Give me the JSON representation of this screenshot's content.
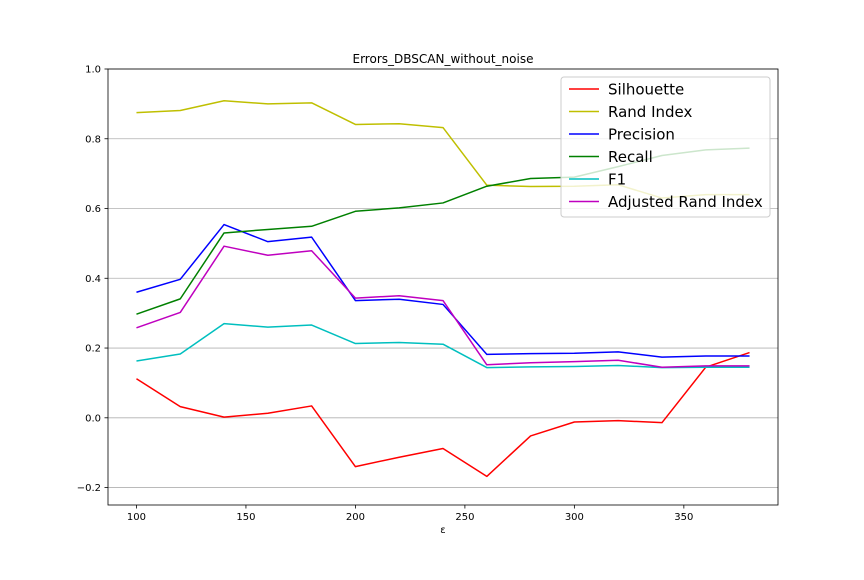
{
  "chart_data": {
    "type": "line",
    "title": "Errors_DBSCAN_without_noise",
    "xlabel": "ε",
    "ylabel": "",
    "xlim": [
      87,
      393
    ],
    "ylim": [
      -0.25,
      1.0
    ],
    "xticks": [
      100,
      150,
      200,
      250,
      300,
      350
    ],
    "yticks": [
      -0.2,
      0.0,
      0.2,
      0.4,
      0.6,
      0.8,
      1.0
    ],
    "grid": "horizontal",
    "legend_position": "top-right",
    "x": [
      100,
      120,
      140,
      160,
      180,
      200,
      220,
      240,
      260,
      280,
      300,
      320,
      340,
      360,
      380
    ],
    "series": [
      {
        "name": "Silhouette",
        "color": "#ff0000",
        "values": [
          0.112,
          0.032,
          0.002,
          0.013,
          0.034,
          -0.14,
          -0.113,
          -0.088,
          -0.168,
          -0.052,
          -0.012,
          -0.008,
          -0.014,
          0.145,
          0.187
        ]
      },
      {
        "name": "Rand Index",
        "color": "#bfbf00",
        "values": [
          0.875,
          0.881,
          0.909,
          0.9,
          0.903,
          0.841,
          0.843,
          0.832,
          0.667,
          0.663,
          0.664,
          0.668,
          0.63,
          0.64,
          0.64
        ]
      },
      {
        "name": "Precision",
        "color": "#0000ff",
        "values": [
          0.36,
          0.397,
          0.554,
          0.505,
          0.518,
          0.336,
          0.34,
          0.325,
          0.182,
          0.184,
          0.185,
          0.189,
          0.174,
          0.177,
          0.177
        ]
      },
      {
        "name": "Recall",
        "color": "#008000",
        "values": [
          0.297,
          0.341,
          0.53,
          0.54,
          0.549,
          0.592,
          0.602,
          0.616,
          0.664,
          0.686,
          0.69,
          0.72,
          0.752,
          0.768,
          0.773
        ]
      },
      {
        "name": "F1",
        "color": "#00bfbf",
        "values": [
          0.163,
          0.183,
          0.27,
          0.26,
          0.266,
          0.213,
          0.216,
          0.211,
          0.144,
          0.146,
          0.147,
          0.15,
          0.144,
          0.145,
          0.145
        ]
      },
      {
        "name": "Adjusted Rand Index",
        "color": "#bf00bf",
        "values": [
          0.258,
          0.302,
          0.492,
          0.466,
          0.479,
          0.343,
          0.35,
          0.336,
          0.152,
          0.158,
          0.161,
          0.165,
          0.145,
          0.149,
          0.149
        ]
      }
    ]
  }
}
